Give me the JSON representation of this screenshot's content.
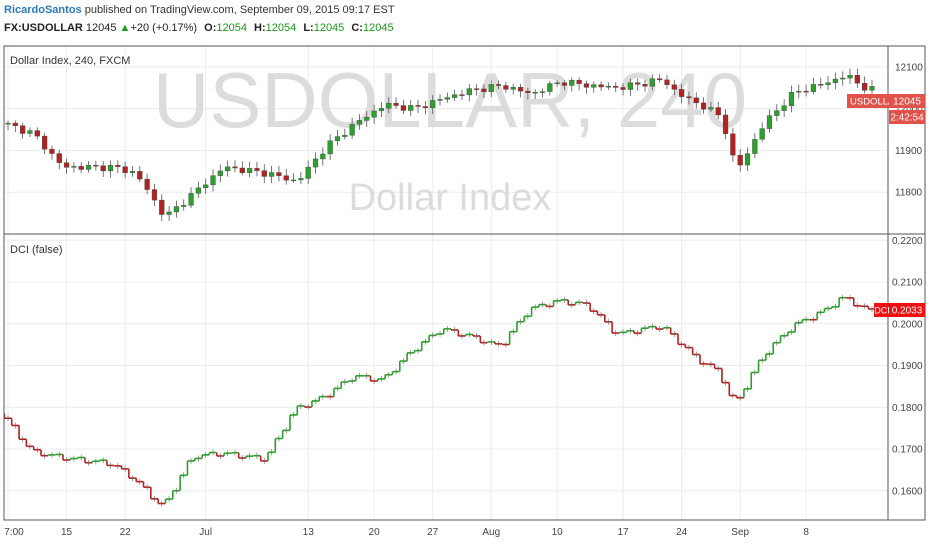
{
  "header": {
    "author": "RicardoSantos",
    "published": "published on TradingView.com, September 09, 2015 09:17 EST",
    "symbol": "FX:USDOLLAR",
    "last": "12045",
    "change": "+20 (+0.17%)",
    "o_label": "O:",
    "o_value": "12054",
    "h_label": "H:",
    "h_value": "12054",
    "l_label": "L:",
    "l_value": "12045",
    "c_label": "C:",
    "c_value": "12045"
  },
  "colors": {
    "up": "#2ca02c",
    "down": "#b22222",
    "badge": "#e0524a",
    "dci_badge": "#ee1111",
    "watermark": "#d4d4d4"
  },
  "icons": {
    "change_arrow": "triangle-up-icon"
  },
  "chart_data": [
    {
      "type": "candlestick",
      "title": "Dollar Index, 240, FXCM",
      "watermark_main": "USDOLLAR, 240",
      "watermark_sub": "Dollar Index",
      "ylim": [
        11700,
        12150
      ],
      "y_ticks": [
        "12100",
        "12000",
        "11900",
        "11800"
      ],
      "last_label": "USDOLLAR",
      "last_value": "12045",
      "countdown": "2:42:54",
      "anchors_x_index": [
        0,
        4,
        8,
        15,
        18,
        22,
        26,
        30,
        36,
        40,
        44,
        48,
        52,
        56,
        60,
        64,
        68,
        72,
        76,
        80,
        84,
        87,
        90,
        92,
        95,
        98,
        100,
        104,
        108,
        112,
        115,
        118
      ],
      "anchors_value": [
        11965,
        11940,
        11860,
        11860,
        11845,
        11740,
        11800,
        11860,
        11845,
        11825,
        11910,
        11965,
        12010,
        12000,
        12025,
        12045,
        12055,
        12035,
        12065,
        12055,
        12050,
        12060,
        12070,
        12035,
        12010,
        11980,
        11850,
        11970,
        12040,
        12060,
        12080,
        12045
      ]
    },
    {
      "type": "step-line",
      "title": "DCI (false)",
      "ylim": [
        0.153,
        0.2215
      ],
      "y_ticks": [
        "0.2200",
        "0.2100",
        "0.2000",
        "0.1900",
        "0.1800",
        "0.1700",
        "0.1600"
      ],
      "last_label": "DCI",
      "last_value": "0.2033",
      "anchors_x_index": [
        0,
        4,
        8,
        15,
        18,
        22,
        26,
        30,
        36,
        40,
        44,
        48,
        52,
        56,
        60,
        64,
        68,
        72,
        76,
        80,
        84,
        87,
        90,
        92,
        95,
        98,
        100,
        104,
        108,
        112,
        115,
        118
      ],
      "anchors_value": [
        0.1785,
        0.1695,
        0.168,
        0.1665,
        0.163,
        0.156,
        0.1682,
        0.169,
        0.1676,
        0.1795,
        0.1825,
        0.1875,
        0.1865,
        0.1935,
        0.1988,
        0.197,
        0.1945,
        0.2035,
        0.2055,
        0.2045,
        0.1975,
        0.1985,
        0.1995,
        0.1965,
        0.1915,
        0.1885,
        0.1805,
        0.1925,
        0.1995,
        0.2028,
        0.2065,
        0.2033
      ]
    }
  ],
  "x_axis": {
    "ticks": [
      "7:00",
      "15",
      "22",
      "Jul",
      "13",
      "20",
      "27",
      "Aug",
      "10",
      "17",
      "24",
      "Sep",
      "8"
    ],
    "tick_index": [
      0,
      8,
      16,
      27,
      41,
      50,
      58,
      66,
      75,
      84,
      92,
      100,
      109
    ]
  }
}
